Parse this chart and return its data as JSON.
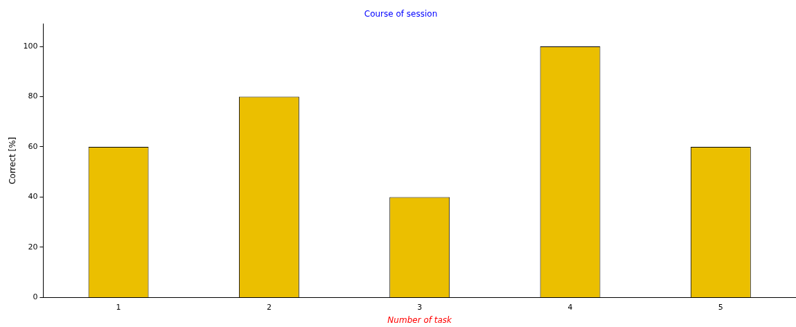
{
  "chart_data": {
    "type": "bar",
    "title": "Course of session",
    "xlabel": "Number of task",
    "ylabel": "Correct [%]",
    "categories": [
      "1",
      "2",
      "3",
      "4",
      "5"
    ],
    "values": [
      60,
      80,
      40,
      100,
      60
    ],
    "color": "#ebbf00",
    "ylim": [
      0,
      109
    ],
    "yticks": [
      0,
      20,
      40,
      60,
      80,
      100
    ],
    "grid": false,
    "legend": false
  }
}
